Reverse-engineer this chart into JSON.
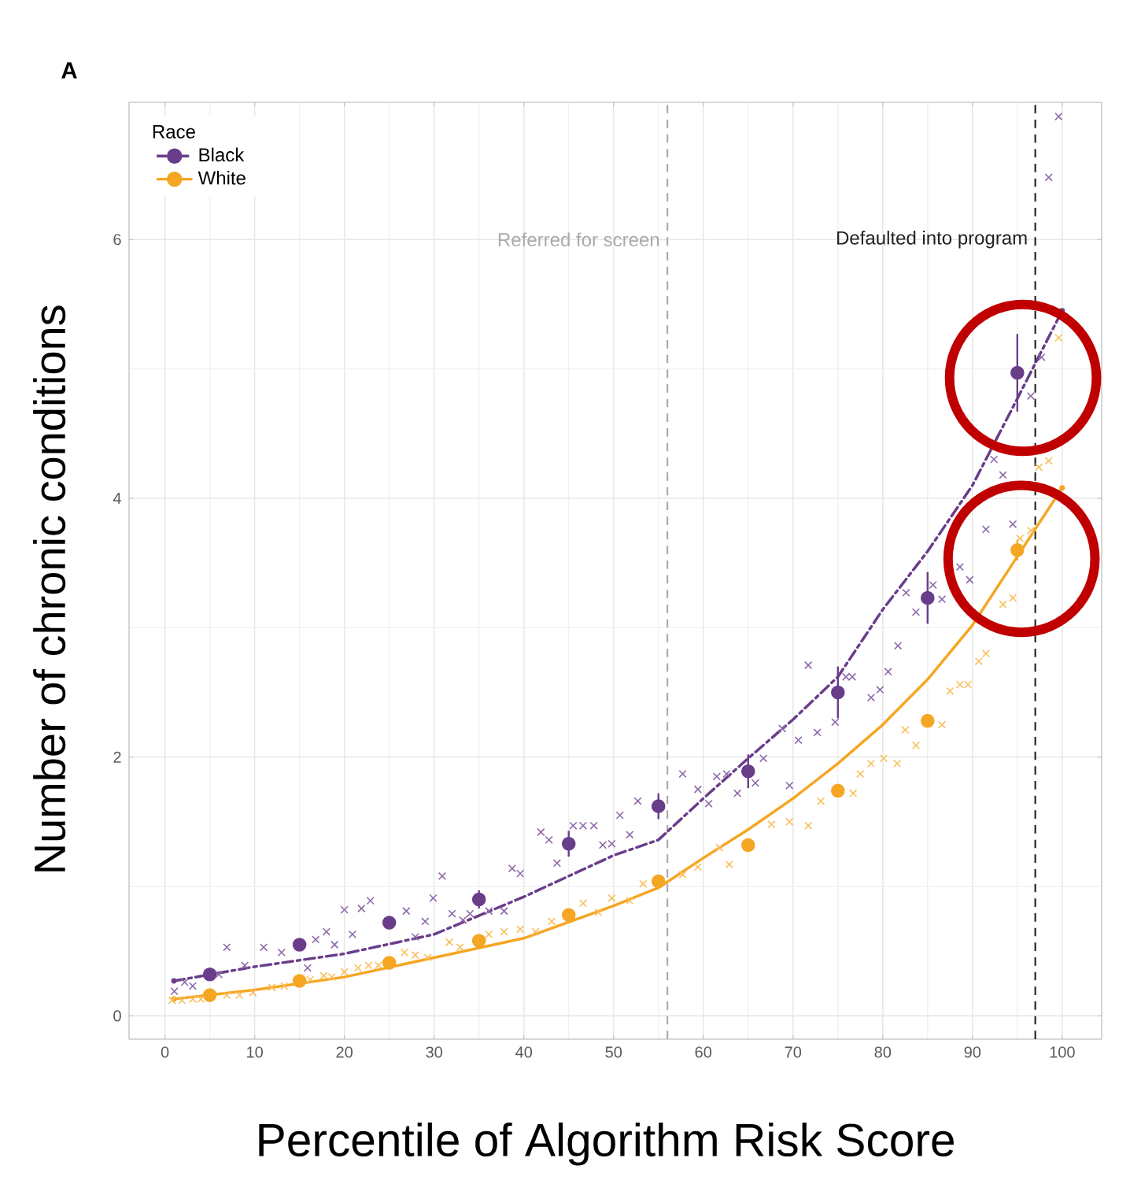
{
  "chart_data": {
    "type": "scatter",
    "xlabel": "Percentile of Algorithm Risk Score",
    "ylabel": "Number of chronic conditions",
    "legend_title": "Race",
    "legend": "top left",
    "grid": true,
    "xlim": [
      -4,
      104.4
    ],
    "ylim": [
      -0.18,
      7.06
    ],
    "xticks": [
      0,
      10,
      20,
      30,
      40,
      50,
      60,
      70,
      80,
      90,
      100
    ],
    "yticks": [
      0,
      2,
      4,
      6
    ],
    "annotations": [
      "A"
    ],
    "ref_lines": [
      {
        "axis": "x",
        "value": 56,
        "label": "Referred for screen",
        "color": "#aaaaaa",
        "line_style": "dashed"
      },
      {
        "axis": "x",
        "value": 97,
        "label": "Defaulted into program",
        "color": "#222222",
        "line_style": "dashed"
      }
    ],
    "series": [
      {
        "name": "Black",
        "marker": "circle",
        "color": "#6a3d8a",
        "x": [
          5,
          15,
          25,
          35,
          45,
          55,
          65,
          75,
          85,
          95
        ],
        "values": [
          0.32,
          0.55,
          0.72,
          0.9,
          1.33,
          1.62,
          1.89,
          2.5,
          3.23,
          4.97
        ],
        "errors": [
          0.04,
          0.04,
          0.05,
          0.07,
          0.1,
          0.1,
          0.13,
          0.2,
          0.2,
          0.3
        ]
      },
      {
        "name": "White",
        "marker": "circle",
        "color": "#f5a623",
        "x": [
          5,
          15,
          25,
          35,
          45,
          55,
          65,
          75,
          85,
          95
        ],
        "values": [
          0.16,
          0.27,
          0.41,
          0.58,
          0.78,
          1.04,
          1.32,
          1.74,
          2.28,
          3.6
        ],
        "errors": [
          0.03,
          0.03,
          0.03,
          0.03,
          0.03,
          0.03,
          0.03,
          0.04,
          0.05,
          0.08
        ]
      },
      {
        "type": "scatter",
        "marker": "cross",
        "color": "#8e6aab",
        "x": [
          1.05,
          2.2,
          3.1,
          6,
          6.9,
          8.9,
          11,
          13,
          15.9,
          16.8,
          18,
          18.9,
          20,
          20.9,
          21.9,
          22.9,
          26.9,
          27.9,
          29,
          29.9,
          30.9,
          32,
          33.2,
          34,
          36.1,
          37.8,
          38.7,
          39.6,
          41.9,
          42.8,
          43.7,
          45.5,
          46.6,
          47.8,
          48.8,
          49.8,
          50.7,
          51.8,
          52.7,
          57.7,
          59.4,
          60.6,
          61.5,
          62.6,
          63.8,
          65.8,
          66.7,
          68.8,
          69.6,
          70.6,
          71.7,
          72.7,
          74.7,
          75.9,
          76.6,
          78.7,
          79.7,
          80.6,
          81.7,
          82.6,
          83.7,
          85.6,
          86.6,
          88.6,
          89.7,
          91.5,
          92.4,
          93.4,
          94.5,
          96.5,
          97.7,
          98.5,
          99.6
        ],
        "values": [
          0.19,
          0.26,
          0.23,
          0.32,
          0.53,
          0.39,
          0.53,
          0.49,
          0.37,
          0.59,
          0.65,
          0.55,
          0.82,
          0.63,
          0.83,
          0.89,
          0.81,
          0.61,
          0.73,
          0.91,
          1.08,
          0.79,
          0.74,
          0.79,
          0.81,
          0.81,
          1.14,
          1.1,
          1.42,
          1.36,
          1.18,
          1.47,
          1.47,
          1.47,
          1.32,
          1.33,
          1.55,
          1.4,
          1.66,
          1.87,
          1.75,
          1.64,
          1.85,
          1.87,
          1.72,
          1.8,
          1.99,
          2.22,
          1.78,
          2.13,
          2.71,
          2.19,
          2.27,
          2.62,
          2.62,
          2.46,
          2.52,
          2.66,
          2.86,
          3.27,
          3.12,
          3.33,
          3.22,
          3.47,
          3.37,
          3.76,
          4.3,
          4.18,
          3.8,
          4.79,
          5.09,
          6.48,
          6.95
        ]
      },
      {
        "type": "scatter",
        "marker": "cross",
        "color": "#f9bf5c",
        "x": [
          0.8,
          1.9,
          3.1,
          4,
          6.9,
          8.3,
          9.8,
          11.9,
          13.3,
          16.2,
          17.7,
          18.6,
          20,
          21.5,
          22.7,
          23.8,
          26.7,
          27.9,
          29.3,
          31.7,
          32.9,
          36.1,
          37.8,
          39.6,
          41.3,
          43.1,
          46.6,
          48.3,
          49.8,
          51.8,
          53.3,
          57.7,
          59.4,
          61.8,
          62.9,
          67.6,
          69.6,
          71.7,
          73.1,
          76.7,
          77.5,
          78.7,
          80.1,
          81.6,
          82.5,
          83.7,
          86.6,
          87.5,
          88.6,
          89.5,
          90.7,
          91.5,
          93.4,
          94.5,
          95.3,
          96.5,
          97.4,
          98.5,
          99.6
        ],
        "values": [
          0.12,
          0.12,
          0.13,
          0.13,
          0.16,
          0.16,
          0.18,
          0.22,
          0.23,
          0.28,
          0.31,
          0.3,
          0.34,
          0.37,
          0.39,
          0.39,
          0.49,
          0.47,
          0.45,
          0.57,
          0.53,
          0.63,
          0.65,
          0.67,
          0.65,
          0.73,
          0.87,
          0.8,
          0.91,
          0.89,
          1.02,
          1.09,
          1.15,
          1.3,
          1.17,
          1.48,
          1.5,
          1.47,
          1.66,
          1.72,
          1.87,
          1.95,
          1.99,
          1.95,
          2.21,
          2.09,
          2.25,
          2.51,
          2.56,
          2.56,
          2.74,
          2.8,
          3.18,
          3.23,
          3.69,
          3.75,
          4.24,
          4.29,
          5.24
        ]
      },
      {
        "type": "line",
        "line_style": "dashed",
        "color": "#6a3d8a",
        "x": [
          1,
          10,
          20,
          30,
          40,
          50,
          55,
          60,
          65,
          70,
          75,
          80,
          85,
          90,
          95,
          100
        ],
        "values": [
          0.27,
          0.38,
          0.48,
          0.63,
          0.92,
          1.24,
          1.36,
          1.68,
          1.99,
          2.29,
          2.62,
          3.14,
          3.59,
          4.1,
          4.77,
          5.45
        ]
      },
      {
        "type": "line",
        "line_style": "solid",
        "color": "#f5a623",
        "x": [
          1,
          10,
          20,
          30,
          40,
          50,
          55,
          60,
          65,
          70,
          75,
          80,
          85,
          90,
          95,
          100
        ],
        "values": [
          0.13,
          0.2,
          0.3,
          0.45,
          0.6,
          0.85,
          0.99,
          1.22,
          1.44,
          1.68,
          1.95,
          2.25,
          2.6,
          3.02,
          3.55,
          4.08
        ]
      }
    ]
  }
}
